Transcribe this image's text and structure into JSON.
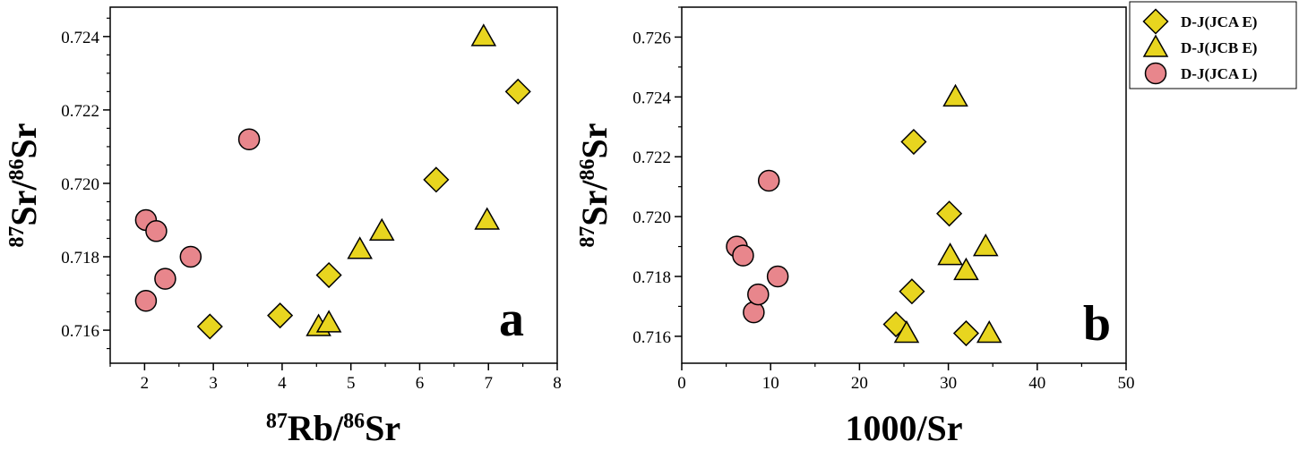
{
  "colors": {
    "diamond": "#e8d51f",
    "triangle": "#e8d51f",
    "circle": "#e8868c",
    "stroke": "#000000"
  },
  "legend": {
    "entries": [
      {
        "label": "D-J(JCA E)",
        "marker": "diamond"
      },
      {
        "label": "D-J(JCB E)",
        "marker": "triangle"
      },
      {
        "label": "D-J(JCA L)",
        "marker": "circle"
      }
    ]
  },
  "chart_data": [
    {
      "type": "scatter",
      "panel_label": "a",
      "xlabel": {
        "iso1": "87",
        "el1": "Rb/",
        "iso2": "86",
        "el2": "Sr"
      },
      "ylabel": {
        "iso1": "87",
        "el1": "Sr/",
        "iso2": "86",
        "el2": "Sr"
      },
      "xlim": [
        1.5,
        8
      ],
      "ylim": [
        0.7151,
        0.7248
      ],
      "xticks": [
        2,
        3,
        4,
        5,
        6,
        7,
        8
      ],
      "yticks": [
        0.716,
        0.718,
        0.72,
        0.722,
        0.724
      ],
      "series": [
        {
          "name": "D-J(JCA E)",
          "marker": "diamond",
          "points": [
            [
              2.95,
              0.7161
            ],
            [
              3.97,
              0.7164
            ],
            [
              4.68,
              0.7175
            ],
            [
              6.24,
              0.7201
            ],
            [
              7.43,
              0.7225
            ]
          ]
        },
        {
          "name": "D-J(JCB E)",
          "marker": "triangle",
          "points": [
            [
              4.53,
              0.7161
            ],
            [
              4.68,
              0.7162
            ],
            [
              5.13,
              0.7182
            ],
            [
              5.45,
              0.7187
            ],
            [
              6.93,
              0.724
            ],
            [
              6.98,
              0.719
            ]
          ]
        },
        {
          "name": "D-J(JCA L)",
          "marker": "circle",
          "points": [
            [
              2.02,
              0.719
            ],
            [
              2.17,
              0.7187
            ],
            [
              2.02,
              0.7168
            ],
            [
              2.3,
              0.7174
            ],
            [
              2.67,
              0.718
            ],
            [
              3.52,
              0.7212
            ]
          ]
        }
      ]
    },
    {
      "type": "scatter",
      "panel_label": "b",
      "xlabel": {
        "text": "1000/Sr"
      },
      "ylabel": {
        "iso1": "87",
        "el1": "Sr/",
        "iso2": "86",
        "el2": "Sr"
      },
      "xlim": [
        0,
        50
      ],
      "ylim": [
        0.7151,
        0.727
      ],
      "xticks": [
        0,
        10,
        20,
        30,
        40,
        50
      ],
      "yticks": [
        0.716,
        0.718,
        0.72,
        0.722,
        0.724,
        0.726
      ],
      "series": [
        {
          "name": "D-J(JCA E)",
          "marker": "diamond",
          "points": [
            [
              24.1,
              0.7164
            ],
            [
              25.9,
              0.7175
            ],
            [
              26.1,
              0.7225
            ],
            [
              30.1,
              0.7201
            ],
            [
              32.0,
              0.7161
            ]
          ]
        },
        {
          "name": "D-J(JCB E)",
          "marker": "triangle",
          "points": [
            [
              25.3,
              0.7161
            ],
            [
              30.2,
              0.7187
            ],
            [
              30.8,
              0.724
            ],
            [
              32.0,
              0.7182
            ],
            [
              34.2,
              0.719
            ],
            [
              34.6,
              0.7161
            ]
          ]
        },
        {
          "name": "D-J(JCA L)",
          "marker": "circle",
          "points": [
            [
              6.2,
              0.719
            ],
            [
              6.9,
              0.7187
            ],
            [
              8.1,
              0.7168
            ],
            [
              8.6,
              0.7174
            ],
            [
              9.8,
              0.7212
            ],
            [
              10.8,
              0.718
            ]
          ]
        }
      ]
    }
  ]
}
